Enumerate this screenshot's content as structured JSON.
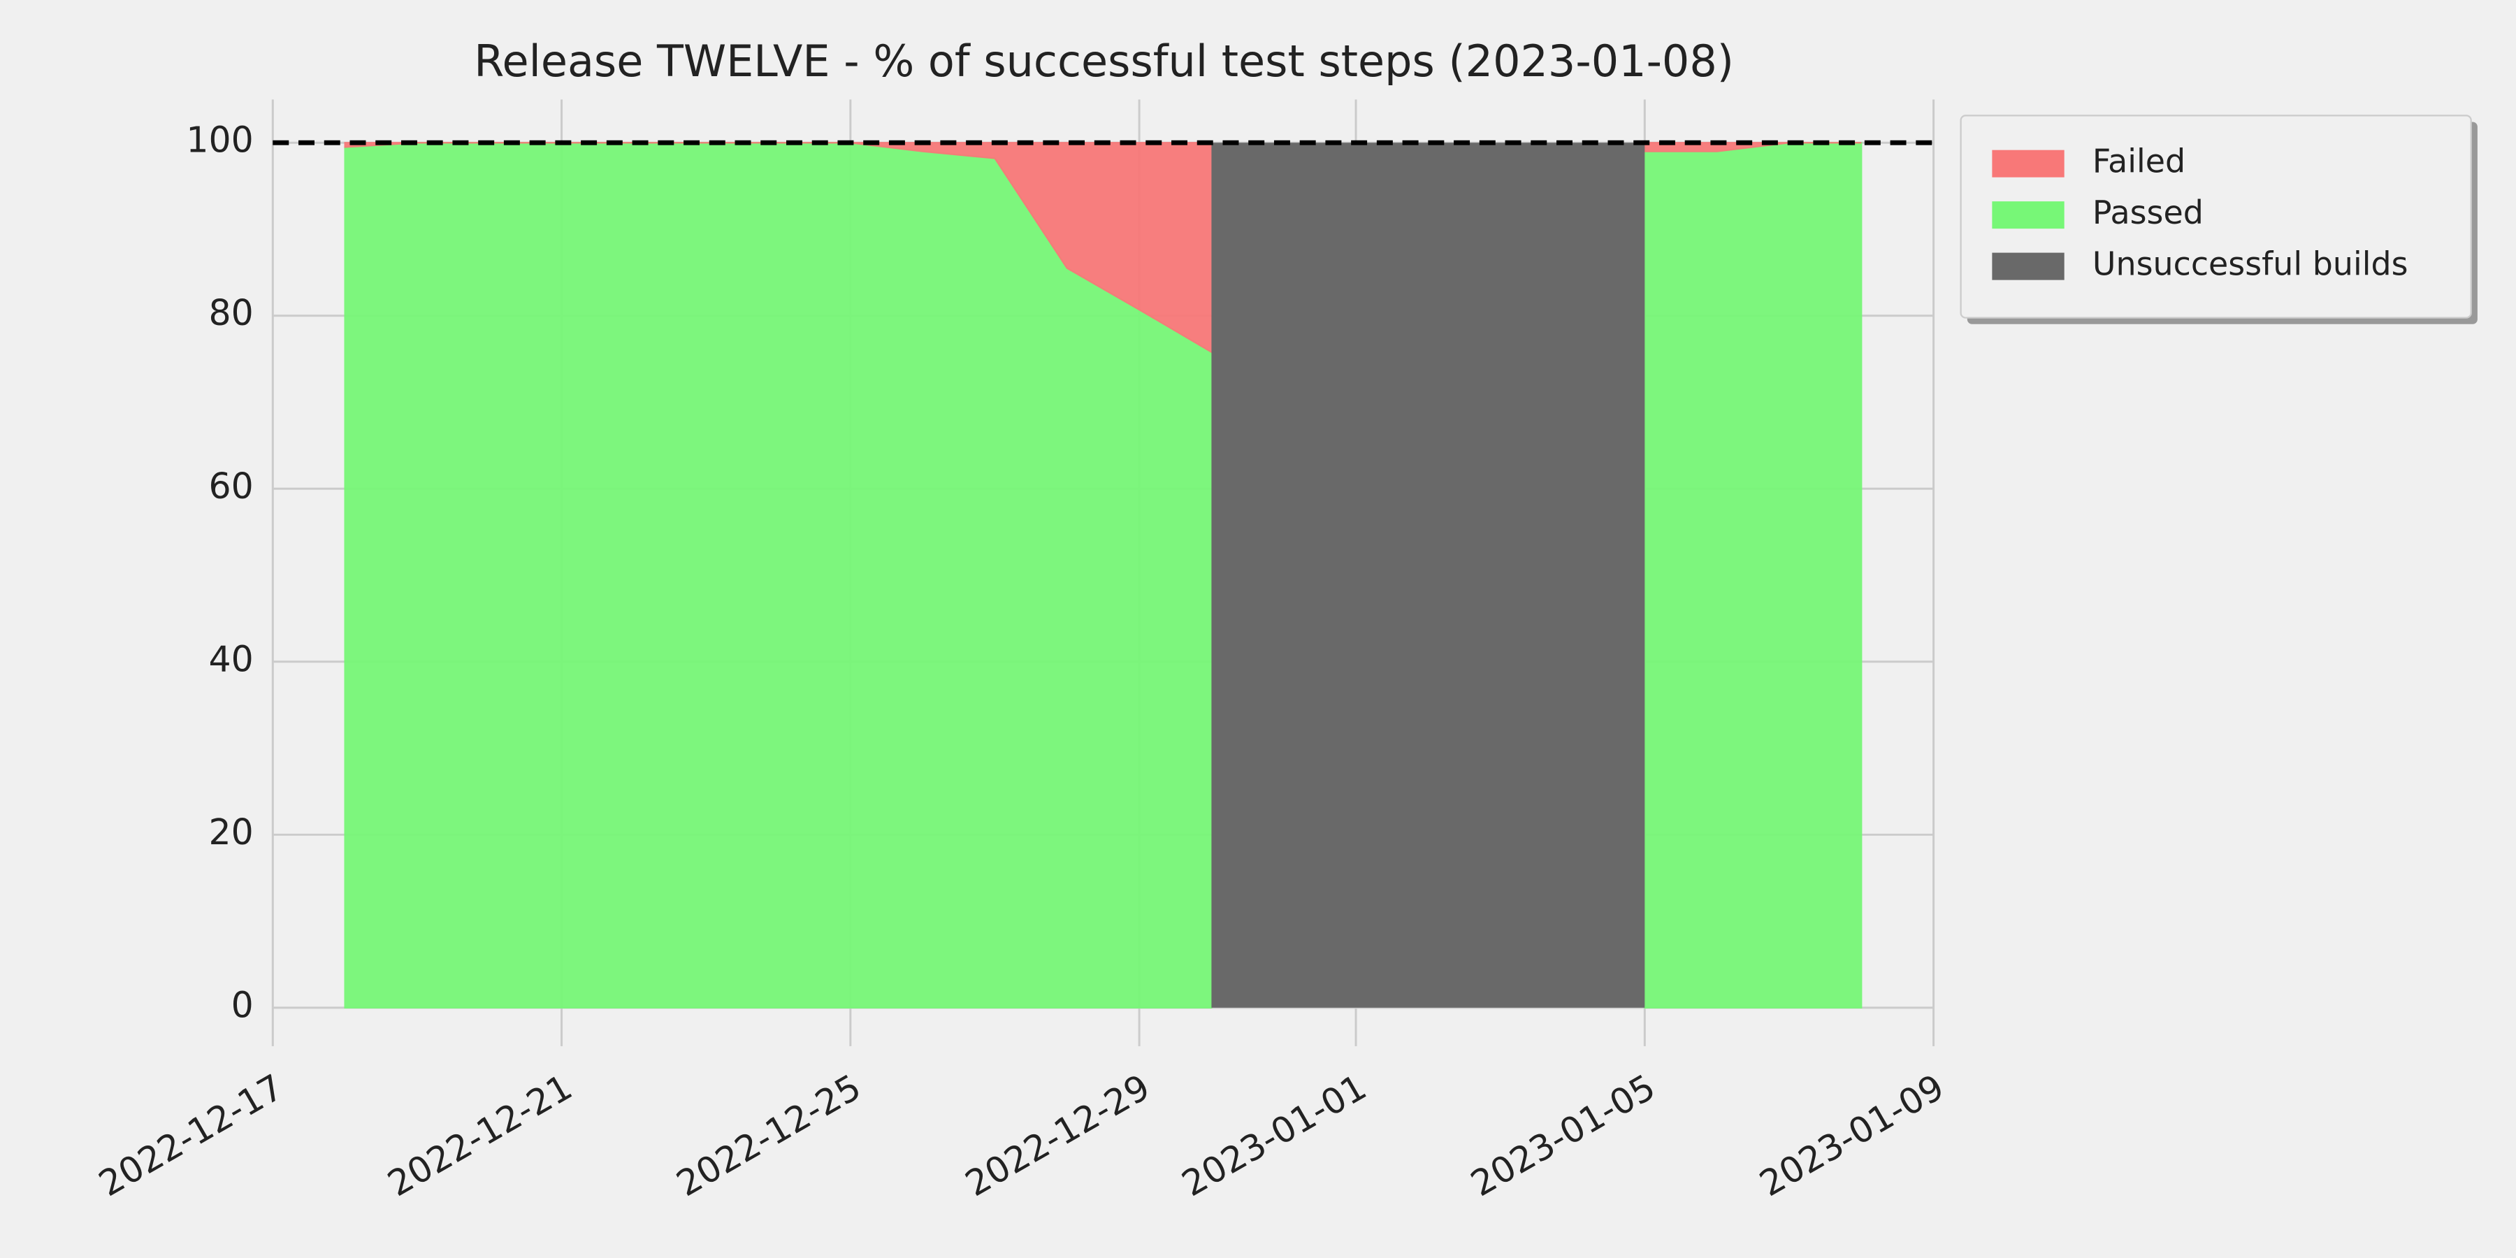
{
  "chart_data": {
    "type": "stacked_area",
    "title": "Release TWELVE - % of successful test steps (2023-01-08)",
    "x": [
      "2022-12-18",
      "2022-12-19",
      "2022-12-20",
      "2022-12-21",
      "2022-12-22",
      "2022-12-23",
      "2022-12-24",
      "2022-12-25",
      "2022-12-26",
      "2022-12-27",
      "2022-12-28",
      "2022-12-29",
      "2022-12-30",
      "2022-12-31",
      "2023-01-01",
      "2023-01-02",
      "2023-01-03",
      "2023-01-04",
      "2023-01-05",
      "2023-01-06",
      "2023-01-07",
      "2023-01-08"
    ],
    "series": [
      {
        "name": "Passed",
        "color": "#77f777",
        "values": [
          99.5,
          100,
          100,
          100,
          100,
          100,
          100,
          100,
          99,
          98.2,
          85.5,
          80.7,
          75.8,
          null,
          null,
          null,
          null,
          null,
          99,
          99,
          100,
          100
        ]
      },
      {
        "name": "Failed",
        "color": "#f87878",
        "values": [
          0.5,
          0,
          0,
          0,
          0,
          0,
          0,
          0,
          1,
          1.8,
          14.5,
          19.3,
          24.2,
          null,
          null,
          null,
          null,
          null,
          1,
          1,
          0,
          0
        ]
      }
    ],
    "spans": [
      {
        "name": "Unsuccessful builds",
        "color": "#696969",
        "start": "2022-12-30",
        "end": "2023-01-05"
      }
    ],
    "legend_order": [
      "Failed",
      "Passed",
      "Unsuccessful builds"
    ],
    "hline": 100,
    "xlim": [
      "2022-12-17",
      "2023-01-09"
    ],
    "xticks": [
      "2022-12-17",
      "2022-12-21",
      "2022-12-25",
      "2022-12-29",
      "2023-01-01",
      "2023-01-05",
      "2023-01-09"
    ],
    "ylim": [
      0,
      105
    ],
    "yticks": [
      0,
      20,
      40,
      60,
      80,
      100
    ],
    "grid": true,
    "legend": "upper right outside"
  }
}
